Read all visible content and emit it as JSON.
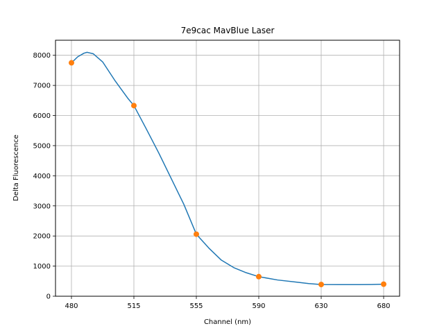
{
  "chart_data": {
    "type": "line",
    "title": "7e9cac MavBlue Laser",
    "xlabel": "Channel (nm)",
    "ylabel": "Delta Fluorescence",
    "x_categories": [
      "480",
      "515",
      "555",
      "590",
      "630",
      "680"
    ],
    "ylim": [
      0,
      8500
    ],
    "yticks": [
      0,
      1000,
      2000,
      3000,
      4000,
      5000,
      6000,
      7000,
      8000
    ],
    "grid": true,
    "series": [
      {
        "kind": "points",
        "color": "#ff7f0e",
        "values": [
          7750,
          6330,
          2060,
          650,
          390,
          400
        ]
      },
      {
        "kind": "smooth-curve",
        "color": "#1f77b4",
        "samples": [
          [
            0,
            7750
          ],
          [
            0.1,
            7950
          ],
          [
            0.2,
            8070
          ],
          [
            0.25,
            8100
          ],
          [
            0.35,
            8050
          ],
          [
            0.5,
            7780
          ],
          [
            0.7,
            7150
          ],
          [
            0.9,
            6580
          ],
          [
            1,
            6330
          ],
          [
            1.2,
            5550
          ],
          [
            1.4,
            4750
          ],
          [
            1.6,
            3900
          ],
          [
            1.8,
            3050
          ],
          [
            2,
            2060
          ],
          [
            2.2,
            1600
          ],
          [
            2.4,
            1200
          ],
          [
            2.6,
            950
          ],
          [
            2.8,
            780
          ],
          [
            3,
            650
          ],
          [
            3.3,
            540
          ],
          [
            3.6,
            470
          ],
          [
            3.8,
            420
          ],
          [
            4,
            390
          ],
          [
            4.3,
            385
          ],
          [
            4.6,
            385
          ],
          [
            4.8,
            390
          ],
          [
            5,
            400
          ]
        ]
      }
    ]
  }
}
